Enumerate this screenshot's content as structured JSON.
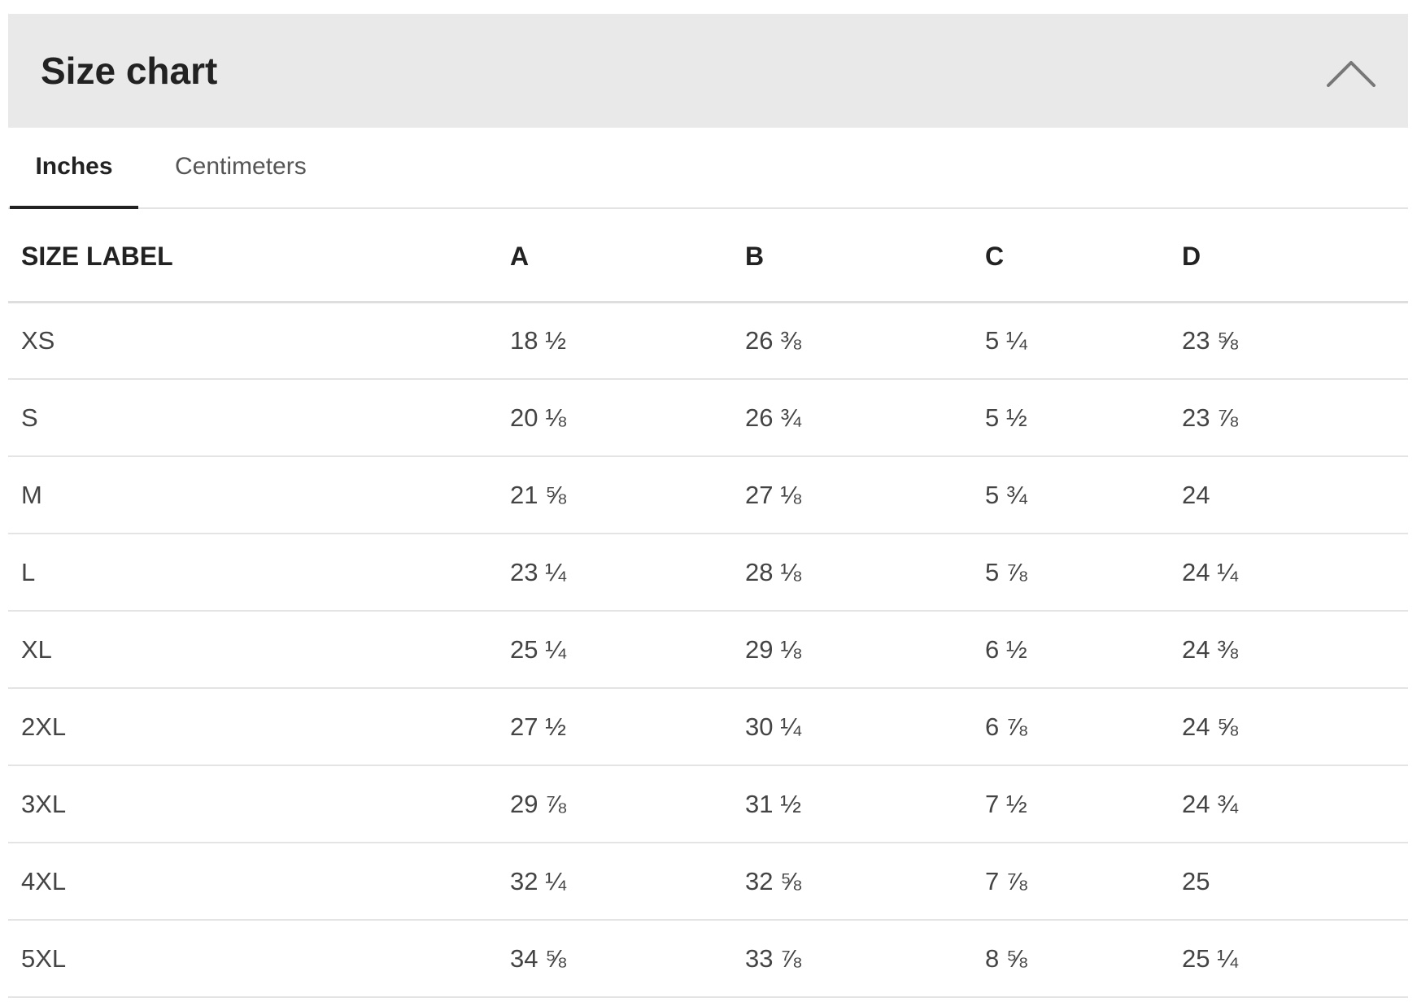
{
  "panel": {
    "title": "Size chart",
    "toggle_icon": "chevron-up-icon"
  },
  "tabs": [
    {
      "label": "Inches",
      "active": true
    },
    {
      "label": "Centimeters",
      "active": false
    }
  ],
  "table": {
    "headers": [
      "SIZE LABEL",
      "A",
      "B",
      "C",
      "D"
    ],
    "rows": [
      [
        "XS",
        "18 ½",
        "26 ⅜",
        "5 ¼",
        "23 ⅝"
      ],
      [
        "S",
        "20 ⅛",
        "26 ¾",
        "5 ½",
        "23 ⅞"
      ],
      [
        "M",
        "21 ⅝",
        "27 ⅛",
        "5 ¾",
        "24"
      ],
      [
        "L",
        "23 ¼",
        "28 ⅛",
        "5 ⅞",
        "24 ¼"
      ],
      [
        "XL",
        "25 ¼",
        "29 ⅛",
        "6 ½",
        "24 ⅜"
      ],
      [
        "2XL",
        "27 ½",
        "30 ¼",
        "6 ⅞",
        "24 ⅝"
      ],
      [
        "3XL",
        "29 ⅞",
        "31 ½",
        "7 ½",
        "24 ¾"
      ],
      [
        "4XL",
        "32 ¼",
        "32 ⅝",
        "7 ⅞",
        "25"
      ],
      [
        "5XL",
        "34 ⅝",
        "33 ⅞",
        "8 ⅝",
        "25 ¼"
      ]
    ]
  },
  "colors": {
    "header_bg": "#e9e9e9",
    "text_dark": "#222222",
    "text_body": "#444444",
    "divider": "#e4e4e4"
  }
}
